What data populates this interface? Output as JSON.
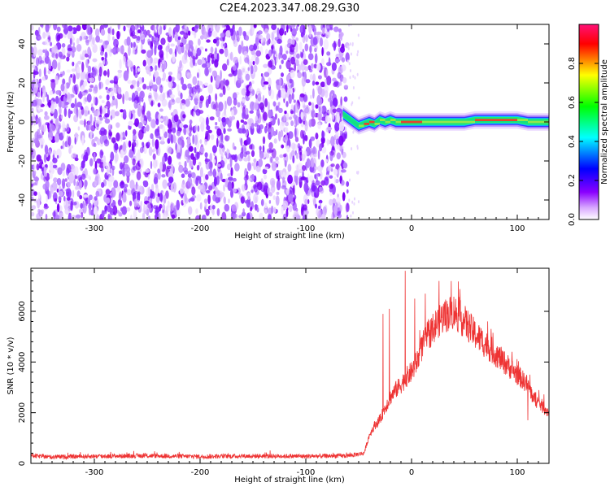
{
  "title": "C2E4.2023.347.08.29.G30",
  "chart_data": [
    {
      "type": "heatmap",
      "xlabel": "Height of straight line (km)",
      "ylabel": "Frequency (Hz)",
      "xlim": [
        -360,
        130
      ],
      "ylim": [
        -50,
        50
      ],
      "xticks": [
        -300,
        -200,
        -100,
        0,
        100
      ],
      "yticks": [
        -40,
        -20,
        0,
        20,
        40
      ],
      "noise_region_x": [
        -360,
        -65
      ],
      "signal_band": {
        "x": [
          -65,
          -60,
          -55,
          -50,
          -45,
          -40,
          -35,
          -30,
          -25,
          -20,
          -15,
          -10,
          -5,
          0,
          10,
          20,
          30,
          40,
          50,
          60,
          70,
          80,
          90,
          100,
          110,
          120,
          130
        ],
        "center_freq": [
          4,
          2,
          0,
          -2,
          -1,
          0,
          -1,
          1,
          0,
          1,
          0,
          0,
          0,
          0,
          0,
          0,
          0,
          0,
          0,
          1,
          1,
          1,
          1,
          1,
          0,
          0,
          0
        ]
      },
      "colorbar": {
        "label": "Normalized spectral amplitude",
        "range": [
          0,
          1
        ],
        "ticks": [
          "0.0",
          "0.2",
          "0.4",
          "0.6",
          "0.8"
        ],
        "colors": [
          "#ffffff",
          "#8a00ff",
          "#0000ff",
          "#00ffff",
          "#00ff00",
          "#ffff00",
          "#ff0000",
          "#ff1177"
        ]
      }
    },
    {
      "type": "line",
      "xlabel": "Height of straight line (km)",
      "ylabel": "SNR (10 * v/v)",
      "xlim": [
        -360,
        130
      ],
      "ylim": [
        0,
        7700
      ],
      "xticks": [
        -300,
        -200,
        -100,
        0,
        100
      ],
      "yticks": [
        0,
        2000,
        4000,
        6000
      ],
      "color": "#ee3333",
      "series": [
        {
          "x": [
            -360,
            -340,
            -300,
            -250,
            -200,
            -150,
            -100,
            -60,
            -45,
            -40,
            -35,
            -30,
            -25,
            -20,
            -15,
            -10,
            -5,
            0,
            5,
            10,
            15,
            20,
            25,
            30,
            35,
            40,
            45,
            50,
            60,
            70,
            80,
            90,
            100,
            110,
            115,
            120,
            130
          ],
          "y": [
            300,
            250,
            280,
            300,
            270,
            290,
            280,
            300,
            400,
            1100,
            1500,
            1700,
            2200,
            2600,
            2900,
            3100,
            3400,
            3600,
            4000,
            4600,
            5000,
            5300,
            5600,
            5800,
            5900,
            6000,
            5800,
            5600,
            5100,
            4700,
            4300,
            3900,
            3500,
            3100,
            2600,
            2400,
            2000
          ],
          "spikes": [
            {
              "x": -27,
              "y": 5900
            },
            {
              "x": -21,
              "y": 6100
            },
            {
              "x": -6,
              "y": 7600
            },
            {
              "x": 3,
              "y": 6500
            },
            {
              "x": 13,
              "y": 6700
            },
            {
              "x": 26,
              "y": 7200
            },
            {
              "x": 110,
              "y": 1700
            }
          ]
        }
      ]
    }
  ]
}
